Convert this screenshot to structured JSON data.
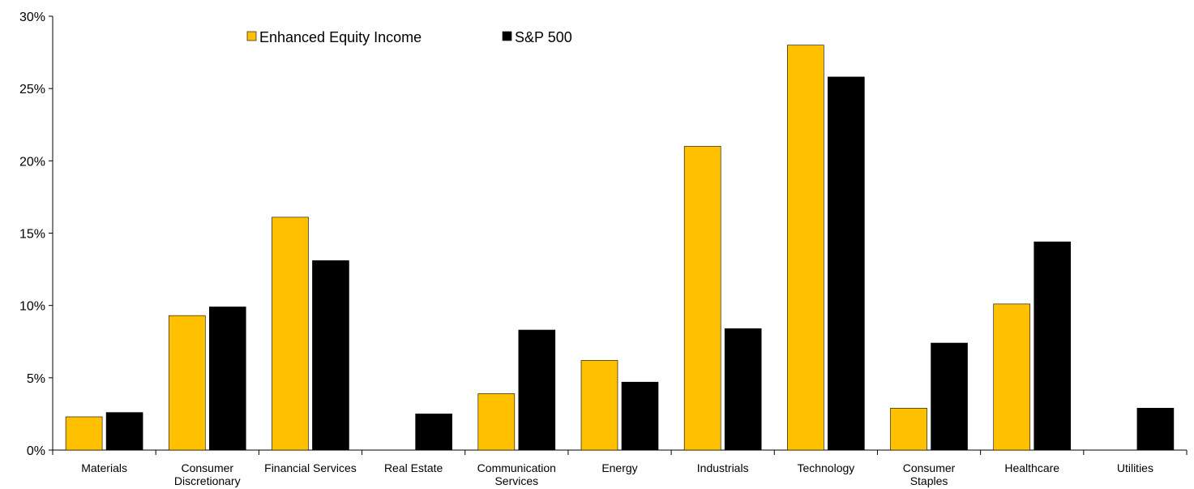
{
  "chart_data": {
    "type": "bar",
    "categories": [
      [
        "Materials"
      ],
      [
        "Consumer",
        "Discretionary"
      ],
      [
        "Financial Services"
      ],
      [
        "Real Estate"
      ],
      [
        "Communication",
        "Services"
      ],
      [
        "Energy"
      ],
      [
        "Industrials"
      ],
      [
        "Technology"
      ],
      [
        "Consumer",
        "Staples"
      ],
      [
        "Healthcare"
      ],
      [
        "Utilities"
      ]
    ],
    "series": [
      {
        "name": "Enhanced Equity Income",
        "color": "#FFC000",
        "values": [
          2.3,
          9.3,
          16.1,
          0,
          3.9,
          6.2,
          21.0,
          28.0,
          2.9,
          10.1,
          0
        ]
      },
      {
        "name": "S&P 500",
        "color": "#000000",
        "values": [
          2.6,
          9.9,
          13.1,
          2.5,
          8.3,
          4.7,
          8.4,
          25.8,
          7.4,
          14.4,
          2.9
        ]
      }
    ],
    "y_ticks": [
      "0%",
      "5%",
      "10%",
      "15%",
      "20%",
      "25%",
      "30%"
    ],
    "ylim": [
      0,
      30
    ],
    "legend_position": "top-left",
    "grid": false
  }
}
